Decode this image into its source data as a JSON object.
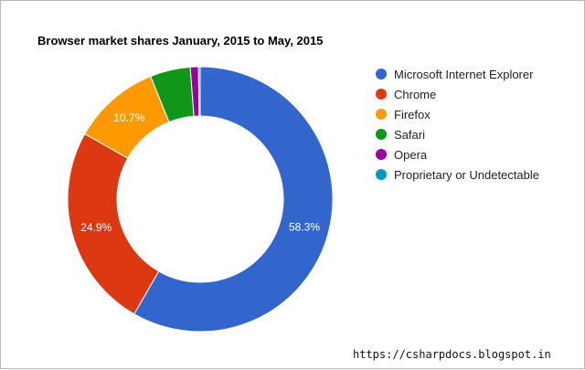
{
  "chart_data": {
    "type": "pie",
    "title": "Browser market shares January, 2015 to May, 2015",
    "donut": true,
    "legend_position": "right",
    "slices": [
      {
        "label": "Microsoft Internet Explorer",
        "value": 58.3,
        "display": "58.3%",
        "color": "#3366cc"
      },
      {
        "label": "Chrome",
        "value": 24.9,
        "display": "24.9%",
        "color": "#dc3912"
      },
      {
        "label": "Firefox",
        "value": 10.7,
        "display": "10.7%",
        "color": "#ff9900"
      },
      {
        "label": "Safari",
        "value": 4.9,
        "display": "",
        "color": "#109618"
      },
      {
        "label": "Opera",
        "value": 1.0,
        "display": "",
        "color": "#990099"
      },
      {
        "label": "Proprietary or Undetectable",
        "value": 0.2,
        "display": "",
        "color": "#0099c6"
      }
    ]
  },
  "watermark": "https://csharpdocs.blogspot.in"
}
